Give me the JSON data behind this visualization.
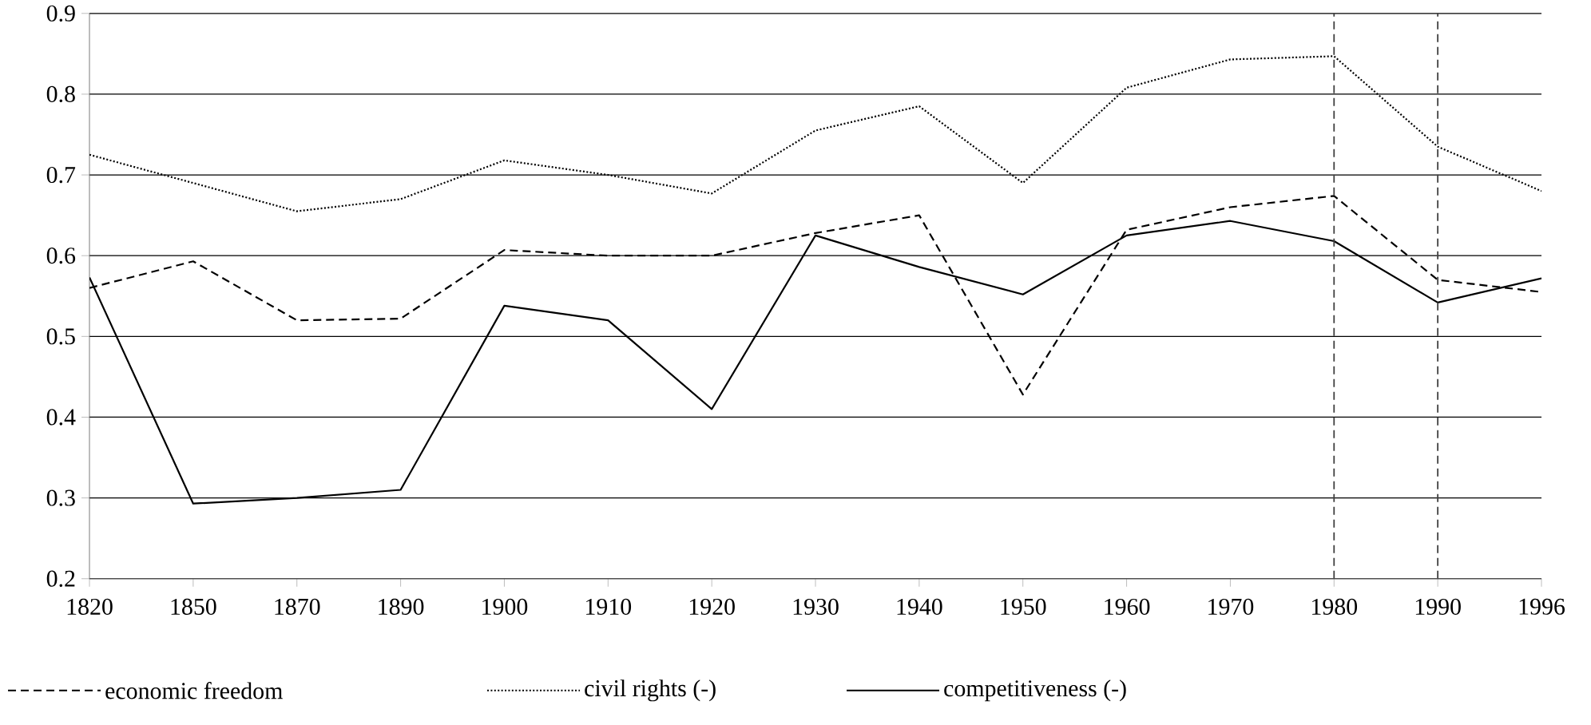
{
  "chart_data": {
    "type": "line",
    "categories": [
      "1820",
      "1850",
      "1870",
      "1890",
      "1900",
      "1910",
      "1920",
      "1930",
      "1940",
      "1950",
      "1960",
      "1970",
      "1980",
      "1990",
      "1996"
    ],
    "series": [
      {
        "name": "economic freedom",
        "color": "#000000",
        "line_style": "dashed",
        "values": [
          0.56,
          0.593,
          0.52,
          0.522,
          0.607,
          0.6,
          0.6,
          0.628,
          0.65,
          0.428,
          0.632,
          0.66,
          0.674,
          0.57,
          0.555
        ]
      },
      {
        "name": "civil rights (-)",
        "color": "#000000",
        "line_style": "dotted",
        "values": [
          0.725,
          0.69,
          0.655,
          0.67,
          0.718,
          0.7,
          0.677,
          0.755,
          0.785,
          0.69,
          0.808,
          0.843,
          0.847,
          0.735,
          0.68
        ]
      },
      {
        "name": "competitiveness (-)",
        "color": "#000000",
        "line_style": "solid",
        "values": [
          0.573,
          0.293,
          0.3,
          0.31,
          0.538,
          0.52,
          0.41,
          0.625,
          0.586,
          0.552,
          0.625,
          0.643,
          0.618,
          0.542,
          0.572
        ]
      }
    ],
    "ylim": [
      0.2,
      0.9
    ],
    "yticks": [
      0.2,
      0.3,
      0.4,
      0.5,
      0.6,
      0.7,
      0.8,
      0.9
    ],
    "grid": "y",
    "legend": "bottom",
    "marker": "none",
    "ref_lines": [
      {
        "axis": "x",
        "value": "1980",
        "color": "#404040",
        "line_style": "dashed"
      },
      {
        "axis": "x",
        "value": "1990",
        "color": "#404040",
        "line_style": "dashed"
      }
    ]
  }
}
